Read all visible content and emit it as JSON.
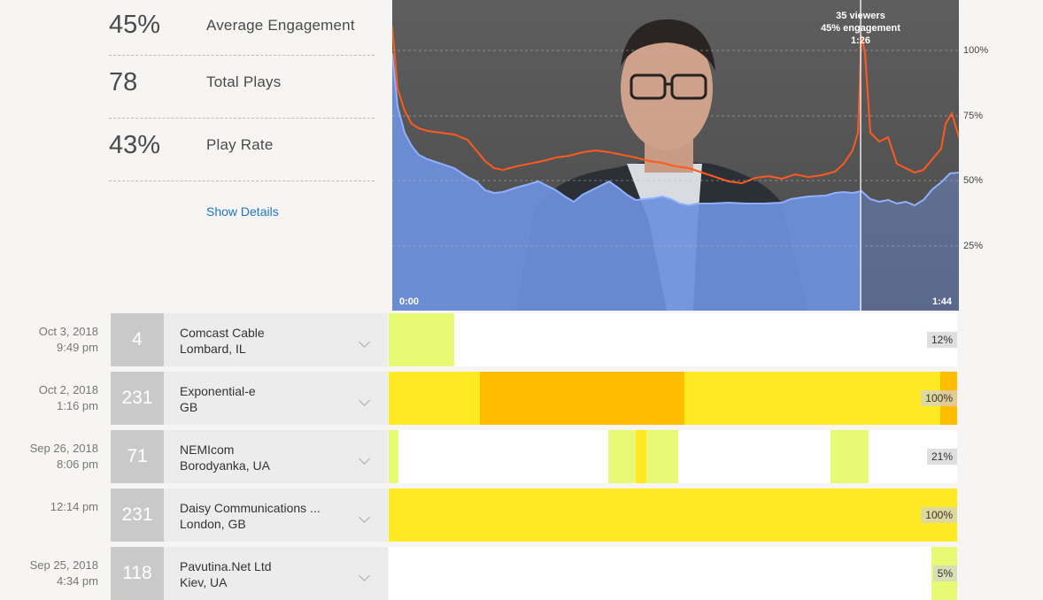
{
  "stats": [
    {
      "value": "45%",
      "label": "Average Engagement"
    },
    {
      "value": "78",
      "label": "Total Plays"
    },
    {
      "value": "43%",
      "label": "Play Rate"
    }
  ],
  "show_details": "Show Details",
  "video": {
    "start_time": "0:00",
    "end_time": "1:44",
    "tooltip": {
      "viewers": "35 viewers",
      "engagement": "45% engagement",
      "time": "1:26"
    },
    "y_ticks": [
      "100%",
      "75%",
      "50%",
      "25%"
    ]
  },
  "colors": {
    "engagement_fill": "#6f8fd6",
    "rewatch_line": "#ff5a1e",
    "low": "#e6fa74",
    "mid": "#ffe923",
    "high": "#ffbd00"
  },
  "viewers": [
    {
      "date": "Oct 3, 2018",
      "time": "9:49 pm",
      "count": "4",
      "name": "Comcast Cable",
      "location": "Lombard, IL",
      "percent": "12%",
      "segments": [
        {
          "from": 0,
          "to": 0.115,
          "level": "low"
        }
      ]
    },
    {
      "date": "Oct 2, 2018",
      "time": "1:16 pm",
      "count": "231",
      "name": "Exponential-e",
      "location": "GB",
      "percent": "100%",
      "segments": [
        {
          "from": 0,
          "to": 0.16,
          "level": "mid"
        },
        {
          "from": 0.16,
          "to": 0.52,
          "level": "high"
        },
        {
          "from": 0.52,
          "to": 0.97,
          "level": "mid"
        },
        {
          "from": 0.97,
          "to": 1,
          "level": "high"
        }
      ]
    },
    {
      "date": "Sep 26, 2018",
      "time": "8:06 pm",
      "count": "71",
      "name": "NEMIcom",
      "location": "Borodyanka, UA",
      "percent": "21%",
      "segments": [
        {
          "from": 0,
          "to": 0.017,
          "level": "low"
        },
        {
          "from": 0.387,
          "to": 0.435,
          "level": "low"
        },
        {
          "from": 0.435,
          "to": 0.453,
          "level": "mid"
        },
        {
          "from": 0.453,
          "to": 0.51,
          "level": "low"
        },
        {
          "from": 0.778,
          "to": 0.845,
          "level": "low"
        }
      ]
    },
    {
      "date": "",
      "time": "12:14 pm",
      "count": "231",
      "name": "Daisy Communications ...",
      "location": "London, GB",
      "percent": "100%",
      "segments": [
        {
          "from": 0,
          "to": 1,
          "level": "mid"
        }
      ]
    },
    {
      "date": "Sep 25, 2018",
      "time": "4:34 pm",
      "count": "118",
      "name": "Pavutina.Net Ltd",
      "location": "Kiev, UA",
      "percent": "5%",
      "segments": [
        {
          "from": 0.955,
          "to": 1,
          "level": "low"
        }
      ]
    }
  ]
}
